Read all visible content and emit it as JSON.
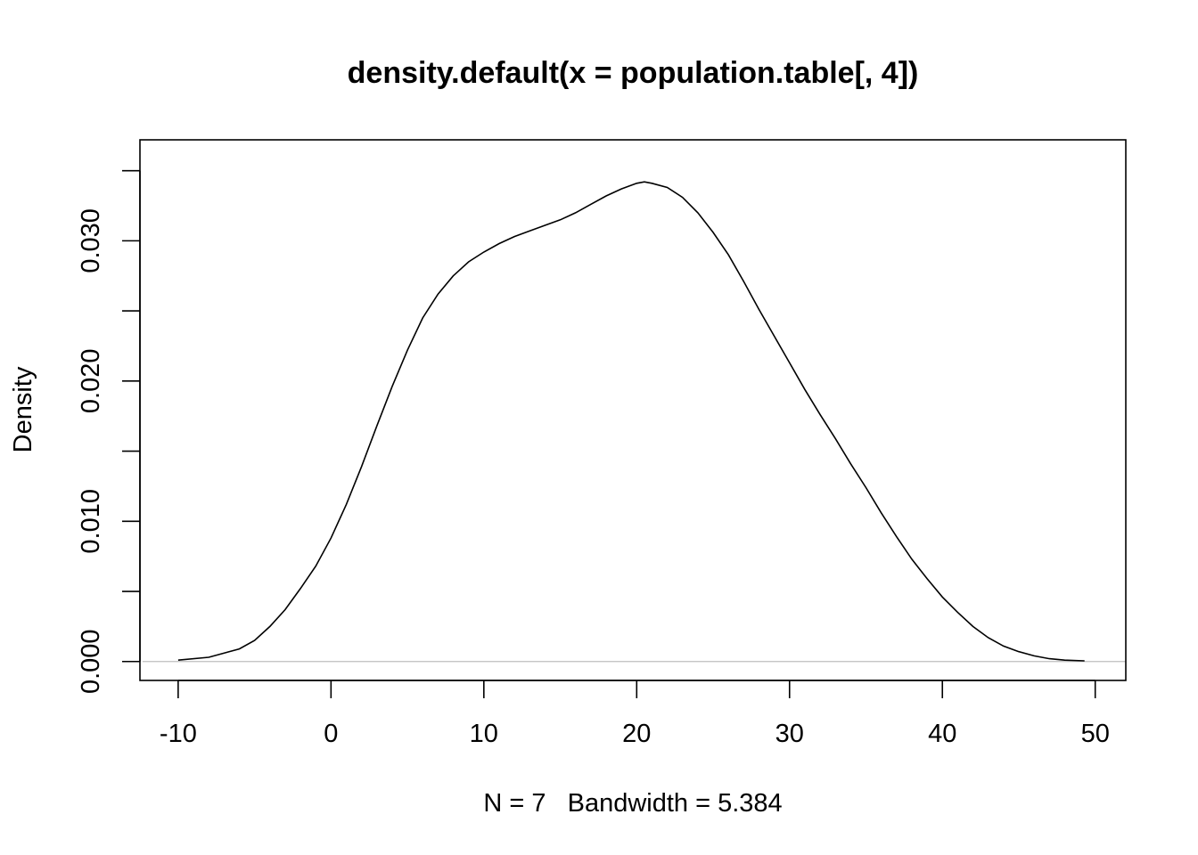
{
  "chart_data": {
    "type": "line",
    "title": "density.default(x = population.table[, 4])",
    "xlabel": "N = 7   Bandwidth = 5.384",
    "ylabel": "Density",
    "xlim": [
      -12.5,
      52.0
    ],
    "ylim": [
      -0.00135,
      0.0372
    ],
    "x_ticks": [
      -10,
      0,
      10,
      20,
      30,
      40,
      50
    ],
    "x_tick_labels": [
      "-10",
      "0",
      "10",
      "20",
      "30",
      "40",
      "50"
    ],
    "y_ticks": [
      0.0,
      0.005,
      0.01,
      0.015,
      0.02,
      0.025,
      0.03,
      0.035
    ],
    "y_tick_labels": [
      "0.000",
      "",
      "0.010",
      "",
      "0.020",
      "",
      "0.030",
      ""
    ],
    "baseline": 0,
    "grid": false,
    "legend": "none",
    "series": [
      {
        "x": [
          -10.0,
          -8.0,
          -6.0,
          -5.0,
          -4.0,
          -3.0,
          -2.0,
          -1.0,
          0.0,
          1.0,
          2.0,
          3.0,
          4.0,
          5.0,
          6.0,
          7.0,
          8.0,
          9.0,
          10.0,
          11.0,
          12.0,
          13.0,
          14.0,
          15.0,
          16.0,
          17.0,
          18.0,
          19.0,
          20.0,
          20.5,
          21.0,
          22.0,
          23.0,
          24.0,
          25.0,
          26.0,
          27.0,
          28.0,
          29.0,
          30.0,
          31.0,
          32.0,
          33.0,
          34.0,
          35.0,
          36.0,
          37.0,
          38.0,
          39.0,
          40.0,
          41.0,
          42.0,
          43.0,
          44.0,
          45.0,
          46.0,
          47.0,
          48.0,
          49.3
        ],
        "y": [
          0.0001,
          0.0003,
          0.0009,
          0.0015,
          0.0025,
          0.0037,
          0.0052,
          0.0068,
          0.0088,
          0.0112,
          0.0139,
          0.0168,
          0.0196,
          0.0222,
          0.0245,
          0.0262,
          0.0275,
          0.0285,
          0.0292,
          0.0298,
          0.0303,
          0.0307,
          0.0311,
          0.0315,
          0.032,
          0.0326,
          0.0332,
          0.0337,
          0.0341,
          0.0342,
          0.0341,
          0.0338,
          0.0331,
          0.032,
          0.0306,
          0.029,
          0.0271,
          0.0251,
          0.0232,
          0.0213,
          0.0194,
          0.0176,
          0.0159,
          0.0141,
          0.0124,
          0.0106,
          0.0089,
          0.0073,
          0.0059,
          0.0046,
          0.0035,
          0.0025,
          0.0017,
          0.0011,
          0.0007,
          0.0004,
          0.0002,
          0.0001,
          5e-05
        ]
      }
    ]
  }
}
